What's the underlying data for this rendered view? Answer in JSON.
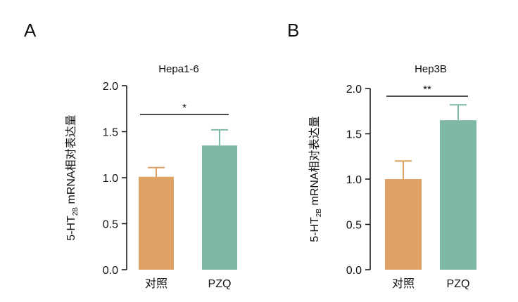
{
  "chart_data": [
    {
      "panel_label": "A",
      "type": "bar",
      "title": "Hepa1-6",
      "categories": [
        "对照",
        "PZQ"
      ],
      "values": [
        1.01,
        1.35
      ],
      "errors": [
        0.1,
        0.17
      ],
      "colors": [
        "#dea264",
        "#7fb8a3"
      ],
      "ylabel": {
        "main": "5-HT",
        "subscript": "2B",
        "rest": " mRNA相对表达量"
      },
      "ylim": [
        0,
        2.0
      ],
      "yticks": [
        "0.0",
        "0.5",
        "1.0",
        "1.5",
        "2.0"
      ],
      "significance": {
        "between": [
          0,
          1
        ],
        "label": "*"
      },
      "grid": false
    },
    {
      "panel_label": "B",
      "type": "bar",
      "title": "Hep3B",
      "categories": [
        "对照",
        "PZQ"
      ],
      "values": [
        1.0,
        1.65
      ],
      "errors": [
        0.2,
        0.17
      ],
      "colors": [
        "#dea264",
        "#7fb8a3"
      ],
      "ylabel": {
        "main": "5-HT",
        "subscript": "2B",
        "rest": " mRNA相对表达量"
      },
      "ylim": [
        0,
        2.0
      ],
      "yticks": [
        "0.0",
        "0.5",
        "1.0",
        "1.5",
        "2.0"
      ],
      "significance": {
        "between": [
          0,
          1
        ],
        "label": "**"
      },
      "grid": false
    }
  ]
}
